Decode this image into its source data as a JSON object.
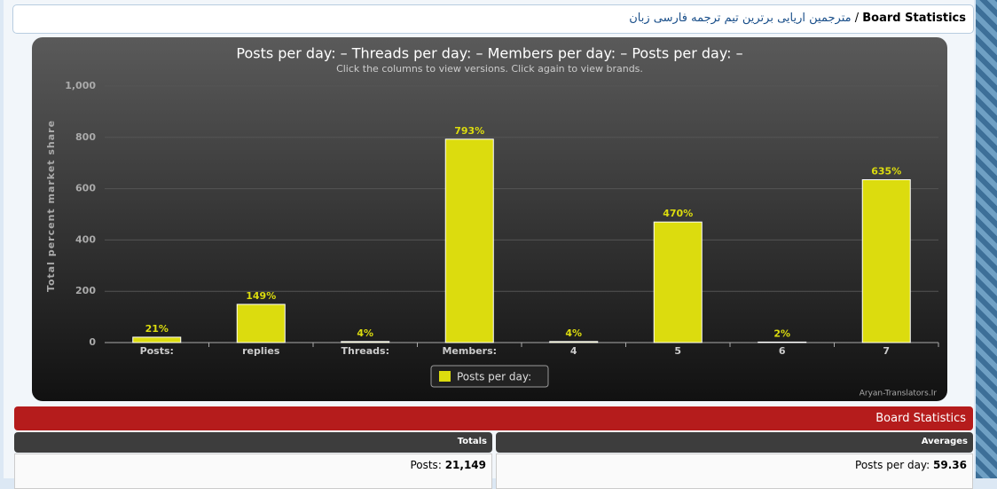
{
  "breadcrumb": {
    "link": "مترجمین اریایی برترین تیم ترجمه فارسی زبان",
    "separator": "/",
    "current": "Board Statistics"
  },
  "chart_data": {
    "type": "bar",
    "title": "Posts per day: – Threads per day: – Members per day: – Posts per day: –",
    "subtitle": "Click the columns to view versions. Click again to view brands.",
    "y_label": "Total percent market share",
    "categories": [
      "Posts:",
      "replies",
      "Threads:",
      "Members:",
      "4",
      "5",
      "6",
      "7"
    ],
    "series": [
      {
        "name": "Posts per day:",
        "color": "#dcdc0e",
        "values": [
          21,
          149,
          4,
          793,
          4,
          470,
          2,
          635
        ],
        "value_labels": [
          "21%",
          "149%",
          "4%",
          "793%",
          "4%",
          "470%",
          "2%",
          "635%"
        ]
      }
    ],
    "ylim": [
      0,
      1000
    ],
    "yticks": [
      0,
      200,
      400,
      600,
      800,
      {
        "value": 1000,
        "label": "1,000"
      }
    ],
    "grid": true,
    "credit": "Aryan-Translators.Ir"
  },
  "stats": {
    "header": "Board Statistics",
    "totals": {
      "title": "Totals",
      "rows": [
        {
          "label": "Posts:",
          "value": "21,149"
        }
      ]
    },
    "averages": {
      "title": "Averages",
      "rows": [
        {
          "label": "Posts per day:",
          "value": "59.36"
        }
      ]
    }
  }
}
